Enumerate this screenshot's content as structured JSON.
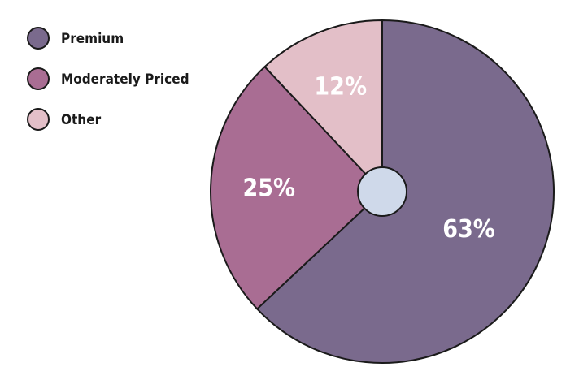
{
  "chart_data": {
    "type": "pie",
    "categories": [
      "Premium",
      "Moderately Priced",
      "Other"
    ],
    "values": [
      63,
      25,
      12
    ],
    "labels": [
      "63%",
      "25%",
      "12%"
    ],
    "colors": [
      "#7a6a8d",
      "#a96d93",
      "#e3bfc8"
    ],
    "center_hole_color": "#cfd9ea",
    "start": "top",
    "direction": "clockwise",
    "legend_position": "top-left"
  }
}
